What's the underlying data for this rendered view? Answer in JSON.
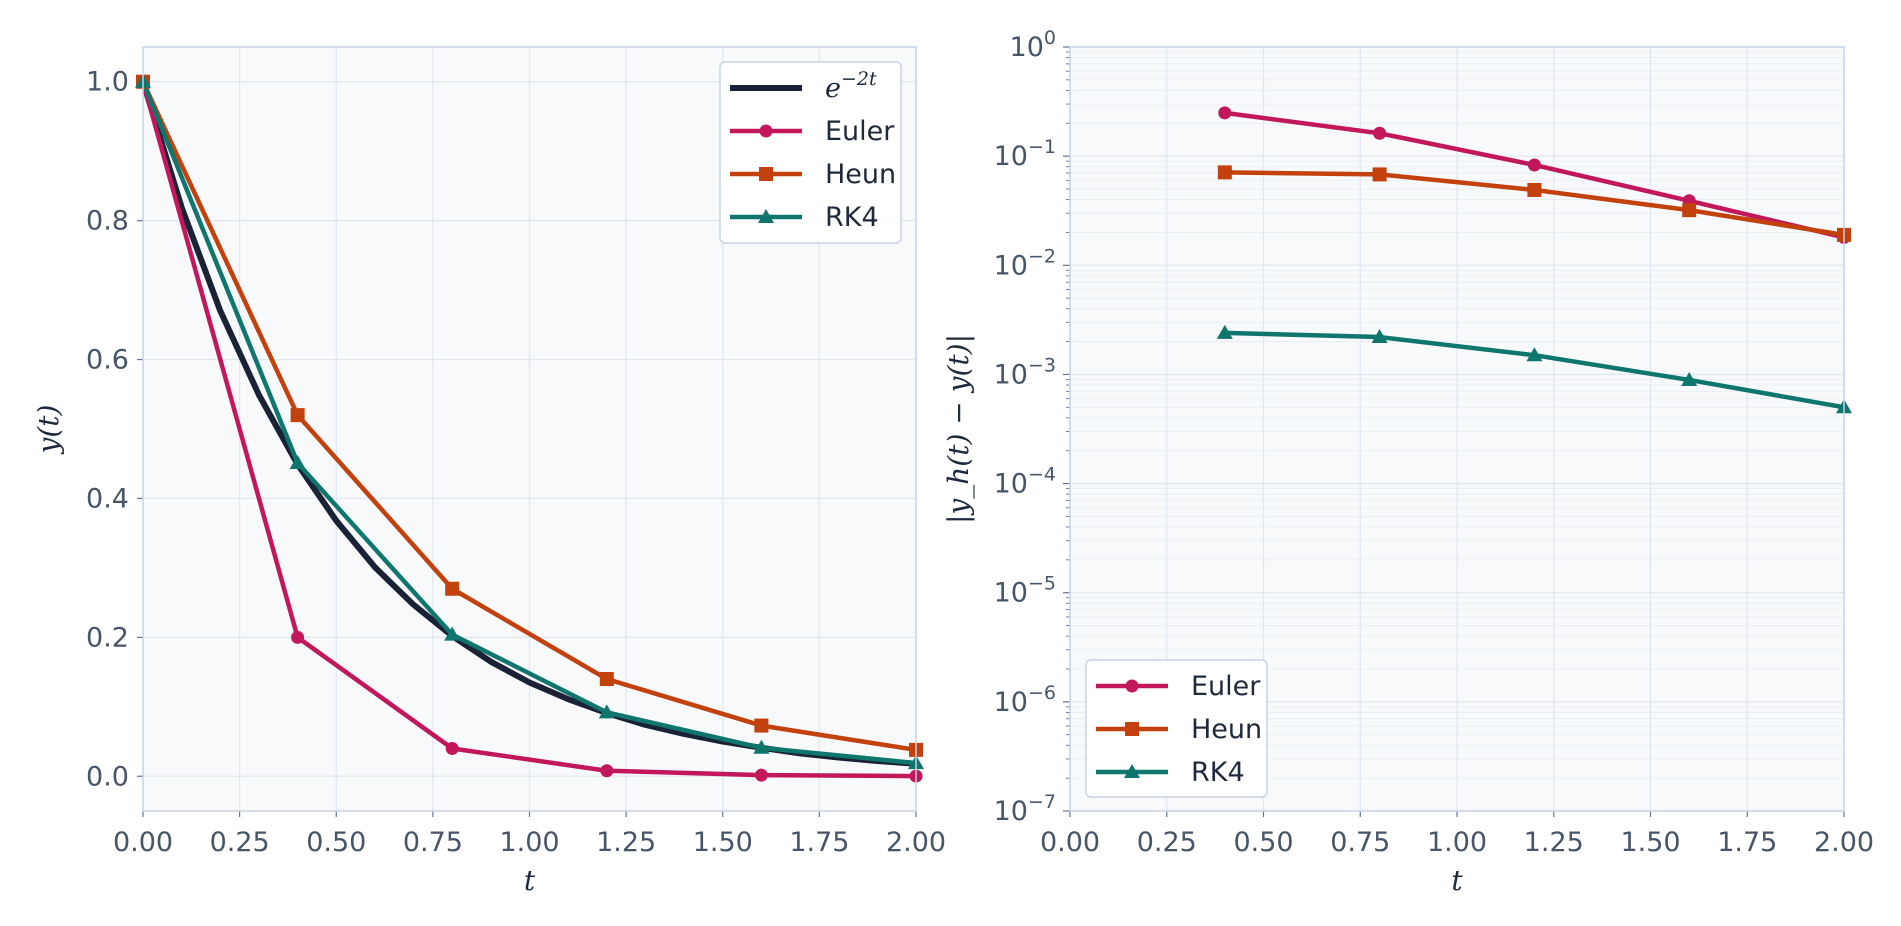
{
  "chart_data": [
    {
      "type": "line",
      "xlabel": "t",
      "ylabel": "y(t)",
      "xlim": [
        0,
        2
      ],
      "ylim": [
        -0.05,
        1.05
      ],
      "xticks": [
        "0.00",
        "0.25",
        "0.50",
        "0.75",
        "1.00",
        "1.25",
        "1.50",
        "1.75",
        "2.00"
      ],
      "yticks": [
        "0.0",
        "0.2",
        "0.4",
        "0.6",
        "0.8",
        "1.0"
      ],
      "grid": true,
      "legend_position": "top-right",
      "exact": {
        "label_base": "e",
        "label_exp": "−2t",
        "x": [
          0,
          0.1,
          0.2,
          0.3,
          0.4,
          0.5,
          0.6,
          0.7,
          0.8,
          0.9,
          1.0,
          1.1,
          1.2,
          1.3,
          1.4,
          1.5,
          1.6,
          1.7,
          1.8,
          1.9,
          2.0
        ],
        "y": [
          1.0,
          0.819,
          0.67,
          0.549,
          0.449,
          0.368,
          0.301,
          0.247,
          0.202,
          0.165,
          0.135,
          0.111,
          0.091,
          0.074,
          0.061,
          0.05,
          0.041,
          0.033,
          0.027,
          0.022,
          0.018
        ],
        "color": "#1a2236"
      },
      "series": [
        {
          "name": "Euler",
          "marker": "circle",
          "color": "#c2185b",
          "x": [
            0,
            0.4,
            0.8,
            1.2,
            1.6,
            2.0
          ],
          "y": [
            1.0,
            0.2,
            0.04,
            0.008,
            0.0016,
            0.0003
          ]
        },
        {
          "name": "Heun",
          "marker": "square",
          "color": "#c2410c",
          "x": [
            0,
            0.4,
            0.8,
            1.2,
            1.6,
            2.0
          ],
          "y": [
            1.0,
            0.52,
            0.27,
            0.14,
            0.073,
            0.038
          ]
        },
        {
          "name": "RK4",
          "marker": "triangle",
          "color": "#0f766e",
          "x": [
            0,
            0.4,
            0.8,
            1.2,
            1.6,
            2.0
          ],
          "y": [
            1.0,
            0.451,
            0.204,
            0.092,
            0.041,
            0.019
          ]
        }
      ]
    },
    {
      "type": "line",
      "yscale": "log",
      "xlabel": "t",
      "ylabel": "|y_h(t) − y(t)|",
      "xlim": [
        0,
        2
      ],
      "ylim": [
        1e-07,
        1
      ],
      "xticks": [
        "0.00",
        "0.25",
        "0.50",
        "0.75",
        "1.00",
        "1.25",
        "1.50",
        "1.75",
        "2.00"
      ],
      "yticks": [
        {
          "base": "10",
          "exp": "−7"
        },
        {
          "base": "10",
          "exp": "−6"
        },
        {
          "base": "10",
          "exp": "−5"
        },
        {
          "base": "10",
          "exp": "−4"
        },
        {
          "base": "10",
          "exp": "−3"
        },
        {
          "base": "10",
          "exp": "−2"
        },
        {
          "base": "10",
          "exp": "−1"
        },
        {
          "base": "10",
          "exp": "0"
        }
      ],
      "grid": true,
      "legend_position": "bottom-left",
      "series": [
        {
          "name": "Euler",
          "marker": "circle",
          "color": "#c2185b",
          "x": [
            0.4,
            0.8,
            1.2,
            1.6,
            2.0
          ],
          "y": [
            0.249,
            0.162,
            0.083,
            0.039,
            0.018
          ]
        },
        {
          "name": "Heun",
          "marker": "square",
          "color": "#c2410c",
          "x": [
            0.4,
            0.8,
            1.2,
            1.6,
            2.0
          ],
          "y": [
            0.071,
            0.068,
            0.049,
            0.032,
            0.019
          ]
        },
        {
          "name": "RK4",
          "marker": "triangle",
          "color": "#0f766e",
          "x": [
            0.4,
            0.8,
            1.2,
            1.6,
            2.0
          ],
          "y": [
            0.0024,
            0.0022,
            0.0015,
            0.00089,
            0.0005
          ]
        }
      ]
    }
  ],
  "colors": {
    "plot_background": "#f7f9fb",
    "grid": "#e1e7ef",
    "spine": "#c8d3e6",
    "tick_text": "#475569"
  }
}
